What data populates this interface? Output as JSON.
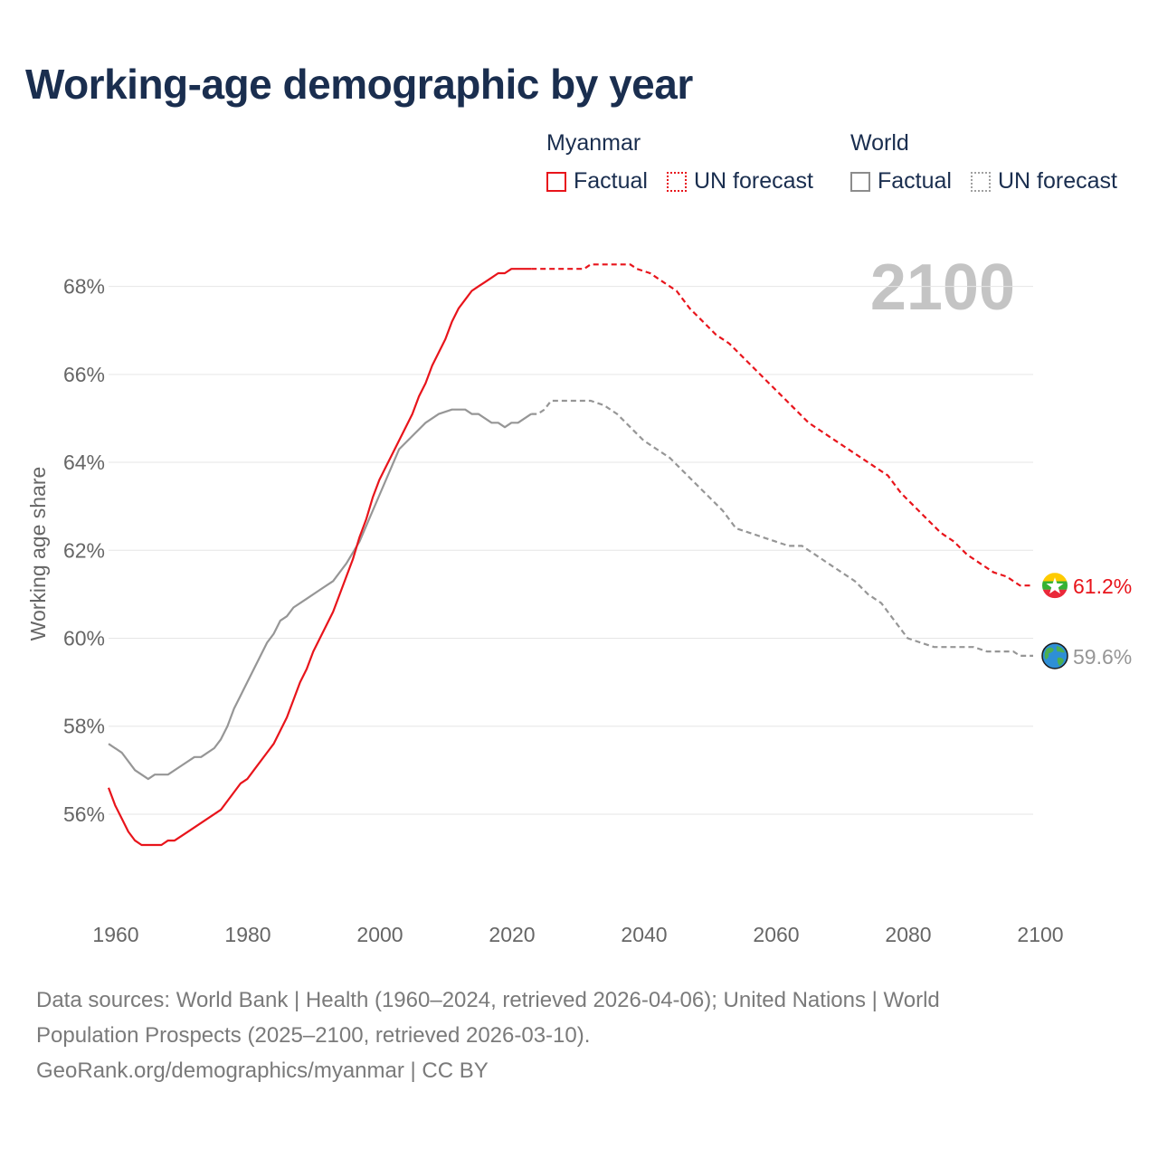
{
  "title": "Working-age demographic by year",
  "legend": {
    "groups": [
      {
        "name": "Myanmar",
        "factual_label": "Factual",
        "forecast_label": "UN forecast"
      },
      {
        "name": "World",
        "factual_label": "Factual",
        "forecast_label": "UN forecast"
      }
    ]
  },
  "footer": {
    "line1": "Data sources: World Bank | Health (1960–2024, retrieved 2026-04-06); United Nations | World",
    "line2": "Population Prospects (2025–2100, retrieved 2026-03-10).",
    "line3": "GeoRank.org/demographics/myanmar | CC BY"
  },
  "chart_data": {
    "type": "line",
    "title": "Working-age demographic by year",
    "year_watermark": "2100",
    "ylabel": "Working age share",
    "xlabel": "",
    "xlim": [
      1960,
      2100
    ],
    "ylim": [
      54.6,
      69.0
    ],
    "x_ticks": [
      1960,
      1980,
      2000,
      2020,
      2040,
      2060,
      2080,
      2100
    ],
    "y_ticks": [
      {
        "value": 56,
        "label": "56%"
      },
      {
        "value": 58,
        "label": "58%"
      },
      {
        "value": 60,
        "label": "60%"
      },
      {
        "value": 62,
        "label": "62%"
      },
      {
        "value": 64,
        "label": "64%"
      },
      {
        "value": 66,
        "label": "66%"
      },
      {
        "value": 68,
        "label": "68%"
      }
    ],
    "series": [
      {
        "name": "Myanmar",
        "color": "#e8141b",
        "end_label": "61.2%",
        "end_icon": "myanmar-flag-icon",
        "factual": {
          "x": [
            1960,
            1961,
            1962,
            1963,
            1964,
            1965,
            1966,
            1967,
            1968,
            1969,
            1970,
            1972,
            1974,
            1976,
            1977,
            1978,
            1979,
            1980,
            1981,
            1982,
            1984,
            1985,
            1986,
            1987,
            1988,
            1989,
            1990,
            1991,
            1992,
            1993,
            1994,
            1995,
            1996,
            1997,
            1998,
            1999,
            2000,
            2001,
            2002,
            2004,
            2006,
            2007,
            2008,
            2009,
            2010,
            2011,
            2012,
            2013,
            2014,
            2015,
            2016,
            2017,
            2018,
            2019,
            2020,
            2021,
            2022,
            2023,
            2024
          ],
          "y": [
            56.6,
            56.2,
            55.9,
            55.6,
            55.4,
            55.3,
            55.3,
            55.3,
            55.3,
            55.4,
            55.4,
            55.6,
            55.8,
            56.0,
            56.1,
            56.3,
            56.5,
            56.7,
            56.8,
            57.0,
            57.4,
            57.6,
            57.9,
            58.2,
            58.6,
            59.0,
            59.3,
            59.7,
            60.0,
            60.3,
            60.6,
            61.0,
            61.4,
            61.8,
            62.3,
            62.7,
            63.2,
            63.6,
            63.9,
            64.5,
            65.1,
            65.5,
            65.8,
            66.2,
            66.5,
            66.8,
            67.2,
            67.5,
            67.7,
            67.9,
            68.0,
            68.1,
            68.2,
            68.3,
            68.3,
            68.4,
            68.4,
            68.4,
            68.4
          ]
        },
        "forecast": {
          "x": [
            2024,
            2026,
            2028,
            2030,
            2032,
            2033,
            2035,
            2037,
            2039,
            2040,
            2042,
            2044,
            2046,
            2048,
            2050,
            2052,
            2054,
            2056,
            2058,
            2060,
            2062,
            2064,
            2066,
            2068,
            2070,
            2072,
            2074,
            2076,
            2078,
            2080,
            2082,
            2084,
            2086,
            2088,
            2090,
            2092,
            2094,
            2096,
            2098,
            2099,
            2100
          ],
          "y": [
            68.4,
            68.4,
            68.4,
            68.4,
            68.4,
            68.5,
            68.5,
            68.5,
            68.5,
            68.4,
            68.3,
            68.1,
            67.9,
            67.5,
            67.2,
            66.9,
            66.7,
            66.4,
            66.1,
            65.8,
            65.5,
            65.2,
            64.9,
            64.7,
            64.5,
            64.3,
            64.1,
            63.9,
            63.7,
            63.3,
            63.0,
            62.7,
            62.4,
            62.2,
            61.9,
            61.7,
            61.5,
            61.4,
            61.2,
            61.2,
            61.2
          ]
        }
      },
      {
        "name": "World",
        "color": "#969696",
        "end_label": "59.6%",
        "end_icon": "globe-icon",
        "factual": {
          "x": [
            1960,
            1962,
            1964,
            1966,
            1967,
            1969,
            1971,
            1973,
            1974,
            1976,
            1977,
            1978,
            1979,
            1980,
            1982,
            1984,
            1985,
            1986,
            1987,
            1988,
            1990,
            1992,
            1994,
            1996,
            1998,
            2000,
            2002,
            2004,
            2006,
            2008,
            2010,
            2012,
            2013,
            2014,
            2015,
            2016,
            2017,
            2018,
            2019,
            2020,
            2021,
            2022,
            2023,
            2024
          ],
          "y": [
            57.6,
            57.4,
            57.0,
            56.8,
            56.9,
            56.9,
            57.1,
            57.3,
            57.3,
            57.5,
            57.7,
            58.0,
            58.4,
            58.7,
            59.3,
            59.9,
            60.1,
            60.4,
            60.5,
            60.7,
            60.9,
            61.1,
            61.3,
            61.7,
            62.2,
            62.9,
            63.6,
            64.3,
            64.6,
            64.9,
            65.1,
            65.2,
            65.2,
            65.2,
            65.1,
            65.1,
            65.0,
            64.9,
            64.9,
            64.8,
            64.9,
            64.9,
            65.0,
            65.1
          ]
        },
        "forecast": {
          "x": [
            2024,
            2025,
            2026,
            2027,
            2029,
            2031,
            2033,
            2035,
            2037,
            2039,
            2041,
            2043,
            2045,
            2047,
            2049,
            2051,
            2053,
            2055,
            2057,
            2059,
            2061,
            2063,
            2065,
            2067,
            2069,
            2071,
            2073,
            2075,
            2077,
            2079,
            2081,
            2083,
            2085,
            2087,
            2089,
            2091,
            2093,
            2095,
            2097,
            2098,
            2100
          ],
          "y": [
            65.1,
            65.1,
            65.2,
            65.4,
            65.4,
            65.4,
            65.4,
            65.3,
            65.1,
            64.8,
            64.5,
            64.3,
            64.1,
            63.8,
            63.5,
            63.2,
            62.9,
            62.5,
            62.4,
            62.3,
            62.2,
            62.1,
            62.1,
            61.9,
            61.7,
            61.5,
            61.3,
            61.0,
            60.8,
            60.4,
            60.0,
            59.9,
            59.8,
            59.8,
            59.8,
            59.8,
            59.7,
            59.7,
            59.7,
            59.6,
            59.6
          ]
        }
      }
    ]
  }
}
